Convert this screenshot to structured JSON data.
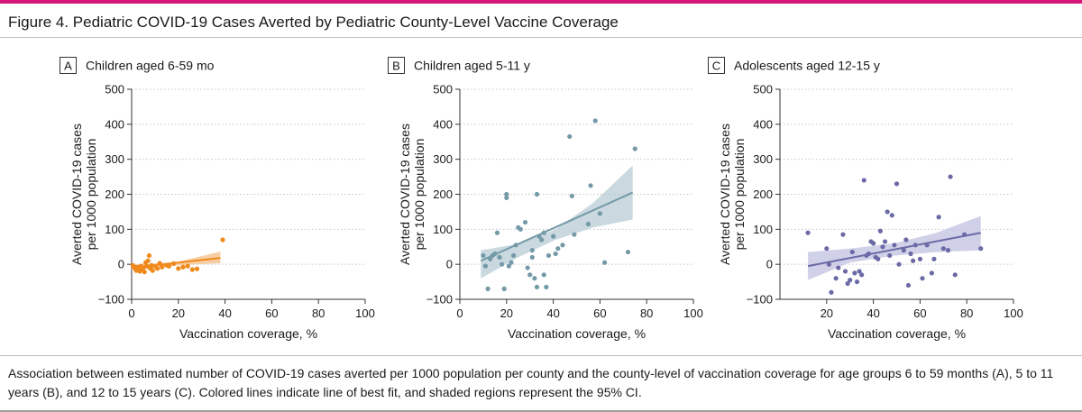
{
  "figure": {
    "title": "Figure 4. Pediatric COVID-19 Cases Averted by Pediatric County-Level Vaccine Coverage",
    "caption": "Association between estimated number of COVID-19 cases averted per 1000 population per county and the county-level of vaccination coverage for age groups 6 to 59 months (A), 5 to 11 years (B), and 12 to 15 years (C). Colored lines indicate line of best fit, and shaded regions represent the 95% CI."
  },
  "chart_data": [
    {
      "type": "scatter",
      "panel_letter": "A",
      "title": "Children aged 6-59 mo",
      "xlabel": "Vaccination coverage, %",
      "ylabel": [
        "Averted COVID-19 cases",
        "per 1000 population"
      ],
      "xlim": [
        0,
        100
      ],
      "ylim": [
        -100,
        500
      ],
      "xticks": [
        0,
        20,
        40,
        60,
        80,
        100
      ],
      "yticks": [
        -100,
        0,
        100,
        200,
        300,
        400,
        500
      ],
      "grid": "horizontal dotted",
      "color": "#f0891c",
      "band_color": "#f7c795",
      "points": [
        [
          0.5,
          -3
        ],
        [
          1,
          -7
        ],
        [
          1.5,
          -12
        ],
        [
          2,
          -18
        ],
        [
          2.5,
          -8
        ],
        [
          3,
          -15
        ],
        [
          3.5,
          -20
        ],
        [
          4,
          -5
        ],
        [
          4.5,
          -13
        ],
        [
          5,
          -10
        ],
        [
          5.5,
          -22
        ],
        [
          6,
          5
        ],
        [
          6.5,
          -5
        ],
        [
          7,
          10
        ],
        [
          7.5,
          25
        ],
        [
          8,
          -12
        ],
        [
          8.5,
          -3
        ],
        [
          9,
          -18
        ],
        [
          10,
          -5
        ],
        [
          11,
          -12
        ],
        [
          12,
          3
        ],
        [
          13,
          -8
        ],
        [
          15,
          -3
        ],
        [
          16,
          -5
        ],
        [
          18,
          2
        ],
        [
          20,
          -12
        ],
        [
          22,
          -8
        ],
        [
          24,
          -5
        ],
        [
          26,
          -15
        ],
        [
          28,
          -13
        ],
        [
          39,
          70
        ]
      ],
      "fit": {
        "x": [
          0,
          38
        ],
        "y": [
          -10,
          18
        ]
      },
      "ci_band": {
        "x": [
          0,
          19,
          38
        ],
        "lower": [
          -18,
          -3,
          3
        ],
        "upper": [
          -2,
          6,
          36
        ]
      }
    },
    {
      "type": "scatter",
      "panel_letter": "B",
      "title": "Children aged 5-11 y",
      "xlabel": "Vaccination coverage, %",
      "ylabel": [
        "Averted COVID-19 cases",
        "per 1000 population"
      ],
      "xlim": [
        0,
        100
      ],
      "ylim": [
        -100,
        500
      ],
      "xticks": [
        0,
        20,
        40,
        60,
        80,
        100
      ],
      "yticks": [
        -100,
        0,
        100,
        200,
        300,
        400,
        500
      ],
      "grid": "horizontal dotted",
      "color": "#7499a7",
      "band_color": "#bfd2d9",
      "points": [
        [
          10,
          25
        ],
        [
          11,
          -5
        ],
        [
          12,
          -70
        ],
        [
          13,
          15
        ],
        [
          14,
          25
        ],
        [
          15,
          30
        ],
        [
          16,
          90
        ],
        [
          17,
          20
        ],
        [
          18,
          0
        ],
        [
          19,
          -70
        ],
        [
          20,
          200
        ],
        [
          20,
          190
        ],
        [
          21,
          -5
        ],
        [
          22,
          5
        ],
        [
          23,
          25
        ],
        [
          24,
          55
        ],
        [
          25,
          105
        ],
        [
          26,
          100
        ],
        [
          28,
          120
        ],
        [
          29,
          -10
        ],
        [
          30,
          -30
        ],
        [
          31,
          40
        ],
        [
          31,
          20
        ],
        [
          32,
          -40
        ],
        [
          33,
          -65
        ],
        [
          33,
          200
        ],
        [
          34,
          80
        ],
        [
          35,
          70
        ],
        [
          36,
          90
        ],
        [
          36,
          -30
        ],
        [
          37,
          -65
        ],
        [
          38,
          25
        ],
        [
          40,
          80
        ],
        [
          41,
          30
        ],
        [
          42,
          45
        ],
        [
          44,
          55
        ],
        [
          47,
          365
        ],
        [
          48,
          195
        ],
        [
          49,
          85
        ],
        [
          55,
          115
        ],
        [
          56,
          225
        ],
        [
          58,
          410
        ],
        [
          60,
          145
        ],
        [
          62,
          5
        ],
        [
          72,
          35
        ],
        [
          75,
          330
        ]
      ],
      "fit": {
        "x": [
          9,
          74
        ],
        "y": [
          10,
          205
        ]
      },
      "ci_band": {
        "x": [
          9,
          25,
          41,
          57,
          74
        ],
        "lower": [
          -40,
          20,
          70,
          105,
          128
        ],
        "upper": [
          40,
          58,
          100,
          175,
          282
        ]
      }
    },
    {
      "type": "scatter",
      "panel_letter": "C",
      "title": "Adolescents aged 12-15 y",
      "xlabel": "Vaccination coverage, %",
      "ylabel": [
        "Averted COVID-19 cases",
        "per 1000 population"
      ],
      "xlim": [
        0,
        100
      ],
      "ylim": [
        -100,
        500
      ],
      "xticks": [
        20,
        40,
        60,
        80,
        100
      ],
      "yticks": [
        -100,
        0,
        100,
        200,
        300,
        400,
        500
      ],
      "grid": "horizontal dotted",
      "color": "#6b6aa6",
      "band_color": "#c8c8e4",
      "points": [
        [
          12,
          90
        ],
        [
          20,
          45
        ],
        [
          21,
          0
        ],
        [
          22,
          -80
        ],
        [
          24,
          -40
        ],
        [
          25,
          -10
        ],
        [
          27,
          85
        ],
        [
          28,
          -20
        ],
        [
          29,
          -55
        ],
        [
          30,
          -45
        ],
        [
          31,
          35
        ],
        [
          32,
          -25
        ],
        [
          33,
          -50
        ],
        [
          34,
          -20
        ],
        [
          35,
          -30
        ],
        [
          36,
          240
        ],
        [
          37,
          25
        ],
        [
          38,
          30
        ],
        [
          39,
          65
        ],
        [
          40,
          60
        ],
        [
          41,
          20
        ],
        [
          42,
          15
        ],
        [
          43,
          95
        ],
        [
          44,
          50
        ],
        [
          45,
          65
        ],
        [
          46,
          150
        ],
        [
          47,
          25
        ],
        [
          48,
          140
        ],
        [
          49,
          55
        ],
        [
          50,
          230
        ],
        [
          51,
          0
        ],
        [
          53,
          40
        ],
        [
          54,
          70
        ],
        [
          55,
          -60
        ],
        [
          56,
          30
        ],
        [
          57,
          10
        ],
        [
          58,
          55
        ],
        [
          60,
          15
        ],
        [
          61,
          -40
        ],
        [
          63,
          55
        ],
        [
          65,
          -25
        ],
        [
          66,
          15
        ],
        [
          68,
          135
        ],
        [
          70,
          45
        ],
        [
          72,
          40
        ],
        [
          73,
          250
        ],
        [
          75,
          -30
        ],
        [
          79,
          85
        ],
        [
          86,
          45
        ]
      ],
      "fit": {
        "x": [
          12,
          86
        ],
        "y": [
          -5,
          90
        ]
      },
      "ci_band": {
        "x": [
          12,
          30,
          49,
          67,
          86
        ],
        "lower": [
          -45,
          5,
          25,
          35,
          40
        ],
        "upper": [
          35,
          45,
          60,
          90,
          138
        ]
      }
    }
  ]
}
